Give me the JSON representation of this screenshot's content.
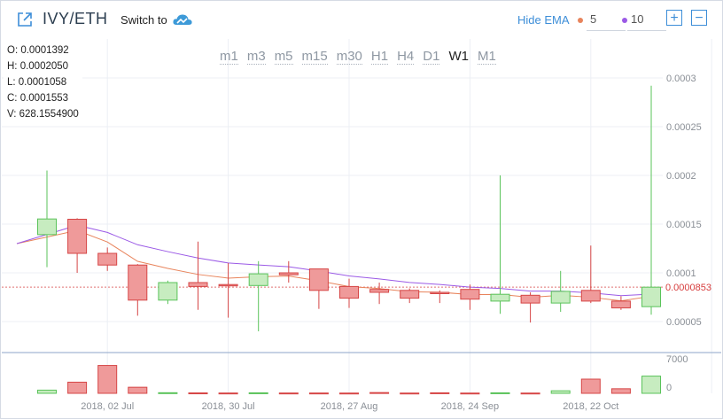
{
  "header": {
    "pair": "IVY/ETH",
    "switch_label": "Switch to",
    "hide_ema_label": "Hide EMA",
    "ema_fast": "5",
    "ema_slow": "10",
    "ema_fast_color": "#e8845c",
    "ema_slow_color": "#9b5ae6",
    "plus_label": "+",
    "minus_label": "−"
  },
  "ohlc": {
    "o": "O: 0.0001392",
    "h": "H: 0.0002050",
    "l": "L: 0.0001058",
    "c": "C: 0.0001553",
    "v": "V: 628.1554900"
  },
  "periods": [
    "m1",
    "m3",
    "m5",
    "m15",
    "m30",
    "H1",
    "H4",
    "D1",
    "W1",
    "M1"
  ],
  "active_period": "W1",
  "colors": {
    "up_fill": "#c7ecc0",
    "up_stroke": "#5ac35a",
    "down_fill": "#ef9a9a",
    "down_stroke": "#d64545",
    "grid": "#eceff4",
    "price_line": "#e07070",
    "price_label": "#d63c3c"
  },
  "chart_data": {
    "type": "candlestick",
    "y_ticks": [
      "0.0003",
      "0.00025",
      "0.0002",
      "0.00015",
      "0.0001",
      "0.00005"
    ],
    "ylim": [
      2e-05,
      0.00034
    ],
    "current_price": 8.53e-05,
    "current_price_label": "0.0000853",
    "x_labels": [
      "2018, 02 Jul",
      "2018, 30 Jul",
      "2018, 27 Aug",
      "2018, 24 Sep",
      "2018, 22 Oct"
    ],
    "vol_ticks": [
      "7000",
      "0"
    ],
    "vol_max": 7000,
    "candles": [
      {
        "o": 0.0001392,
        "h": 0.000205,
        "l": 0.0001058,
        "c": 0.0001553,
        "v": 628
      },
      {
        "o": 0.000155,
        "h": 0.000156,
        "l": 0.0001,
        "c": 0.00012,
        "v": 2200
      },
      {
        "o": 0.00012,
        "h": 0.000126,
        "l": 0.000102,
        "c": 0.000108,
        "v": 5500
      },
      {
        "o": 0.000108,
        "h": 0.000109,
        "l": 5.6e-05,
        "c": 7.2e-05,
        "v": 1200
      },
      {
        "o": 7.2e-05,
        "h": 9.2e-05,
        "l": 6.8e-05,
        "c": 9e-05,
        "v": 120
      },
      {
        "o": 9e-05,
        "h": 0.000132,
        "l": 6.2e-05,
        "c": 8.6e-05,
        "v": 80
      },
      {
        "o": 8.8e-05,
        "h": 0.00011,
        "l": 5.4e-05,
        "c": 8.7e-05,
        "v": 60
      },
      {
        "o": 8.7e-05,
        "h": 0.000112,
        "l": 4e-05,
        "c": 9.9e-05,
        "v": 100
      },
      {
        "o": 0.0001,
        "h": 0.000112,
        "l": 9e-05,
        "c": 9.8e-05,
        "v": 60
      },
      {
        "o": 0.000104,
        "h": 0.000104,
        "l": 6.3e-05,
        "c": 8.2e-05,
        "v": 60
      },
      {
        "o": 8.6e-05,
        "h": 9.4e-05,
        "l": 6.4e-05,
        "c": 7.4e-05,
        "v": 50
      },
      {
        "o": 8.3e-05,
        "h": 9e-05,
        "l": 6.8e-05,
        "c": 8e-05,
        "v": 150
      },
      {
        "o": 8.2e-05,
        "h": 8.4e-05,
        "l": 6.9e-05,
        "c": 7.4e-05,
        "v": 50
      },
      {
        "o": 8e-05,
        "h": 8.2e-05,
        "l": 6.9e-05,
        "c": 7.9e-05,
        "v": 100
      },
      {
        "o": 8.3e-05,
        "h": 8.8e-05,
        "l": 6.2e-05,
        "c": 7.3e-05,
        "v": 50
      },
      {
        "o": 7.1e-05,
        "h": 0.0002,
        "l": 5.8e-05,
        "c": 7.8e-05,
        "v": 100
      },
      {
        "o": 7.7e-05,
        "h": 8e-05,
        "l": 4.9e-05,
        "c": 6.9e-05,
        "v": 50
      },
      {
        "o": 6.9e-05,
        "h": 0.000102,
        "l": 6e-05,
        "c": 8.1e-05,
        "v": 500
      },
      {
        "o": 8.2e-05,
        "h": 0.000128,
        "l": 6.9e-05,
        "c": 7.1e-05,
        "v": 2800
      },
      {
        "o": 7.1e-05,
        "h": 7.6e-05,
        "l": 6.2e-05,
        "c": 6.4e-05,
        "v": 900
      },
      {
        "o": 6.53e-05,
        "h": 0.000292,
        "l": 5.7e-05,
        "c": 8.53e-05,
        "v": 3400
      }
    ]
  }
}
